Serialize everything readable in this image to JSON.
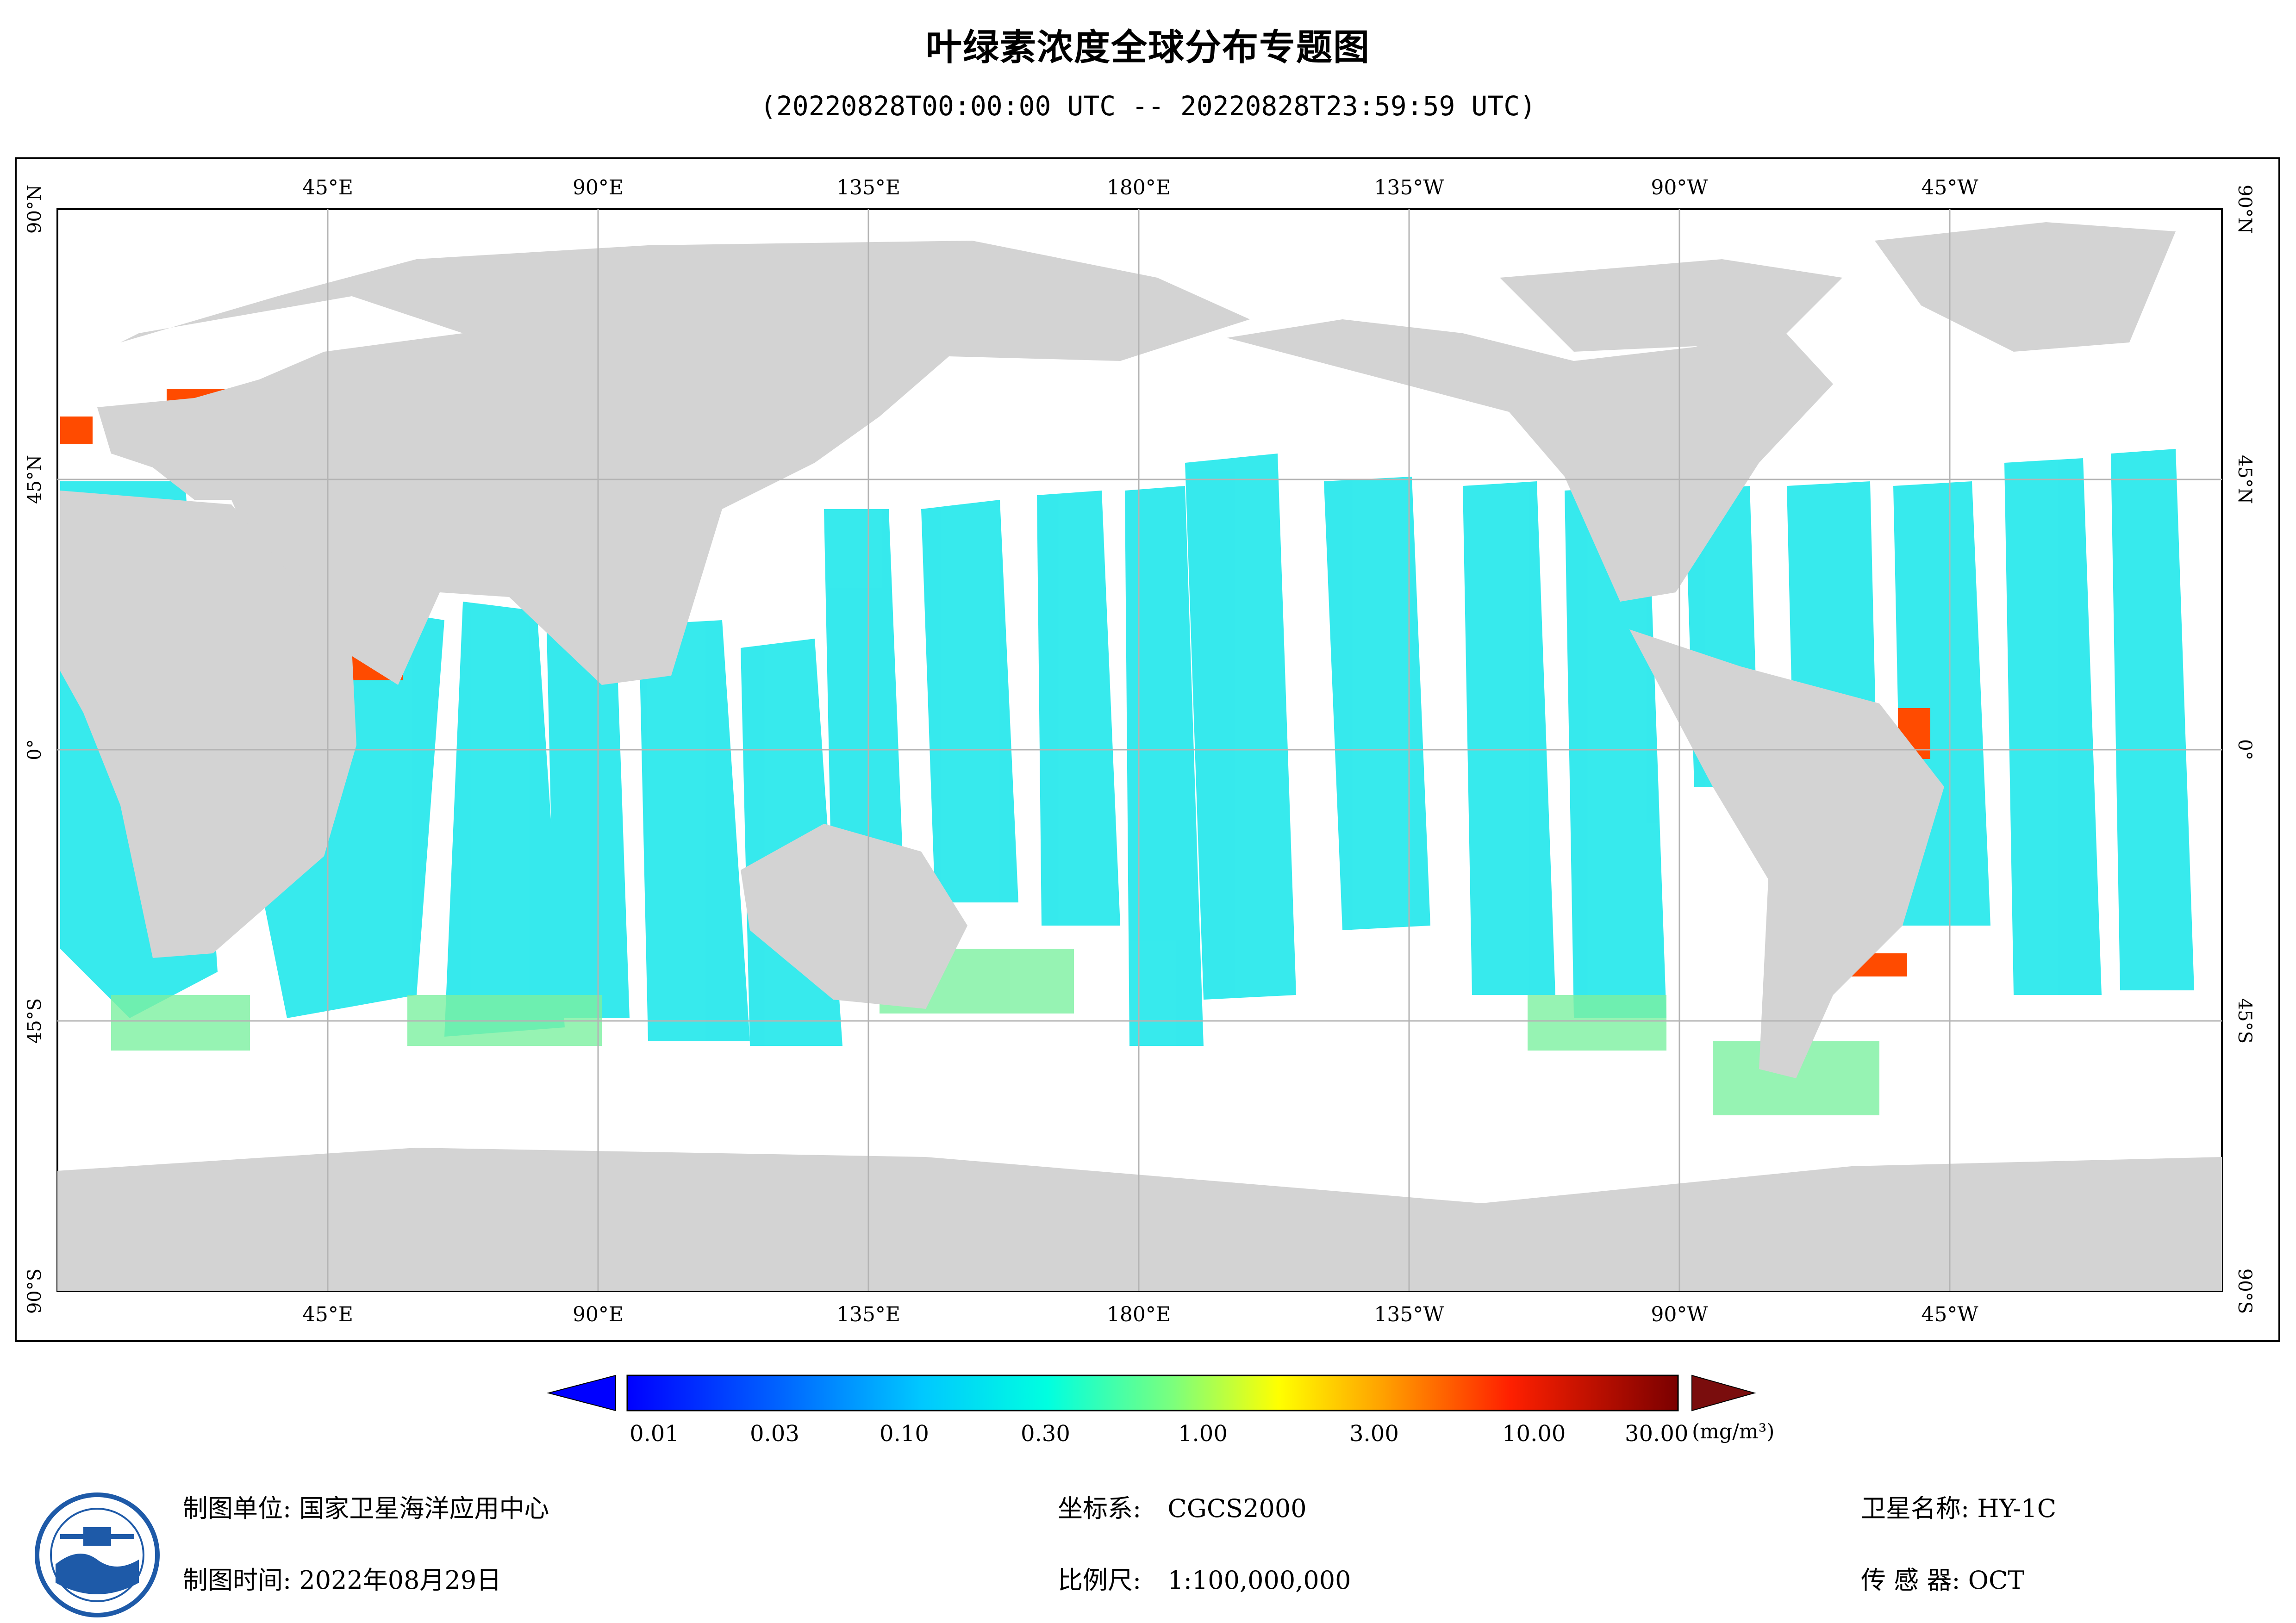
{
  "title": "叶绿素浓度全球分布专题图",
  "subtitle": "(20220828T00:00:00 UTC -- 20220828T23:59:59 UTC)",
  "map": {
    "projection_center_lon": 180,
    "lon_labels": [
      "45°E",
      "90°E",
      "135°E",
      "180°E",
      "135°W",
      "90°W",
      "45°W"
    ],
    "lat_labels": [
      "90°N",
      "45°N",
      "0°",
      "45°S",
      "90°S"
    ],
    "colors": {
      "land": "#d3d3d3",
      "no_data": "#ffffff",
      "grid": "#b4b4b4"
    }
  },
  "legend": {
    "ticks": [
      "0.01",
      "0.03",
      "0.10",
      "0.30",
      "1.00",
      "3.00",
      "10.00",
      "30.00"
    ],
    "unit": "(mg/m³)",
    "under_color": "#0000ff",
    "over_color": "#7a0d0d"
  },
  "footer": {
    "org_label": "制图单位:",
    "org_value": "国家卫星海洋应用中心",
    "date_label": "制图时间:",
    "date_value": "2022年08月29日",
    "crs_label": "坐标系:",
    "crs_value": "CGCS2000",
    "scale_label": "比例尺:",
    "scale_value": "1:100,000,000",
    "satellite_label": "卫星名称:",
    "satellite_value": "HY-1C",
    "sensor_label": "传 感 器:",
    "sensor_value": "OCT"
  }
}
